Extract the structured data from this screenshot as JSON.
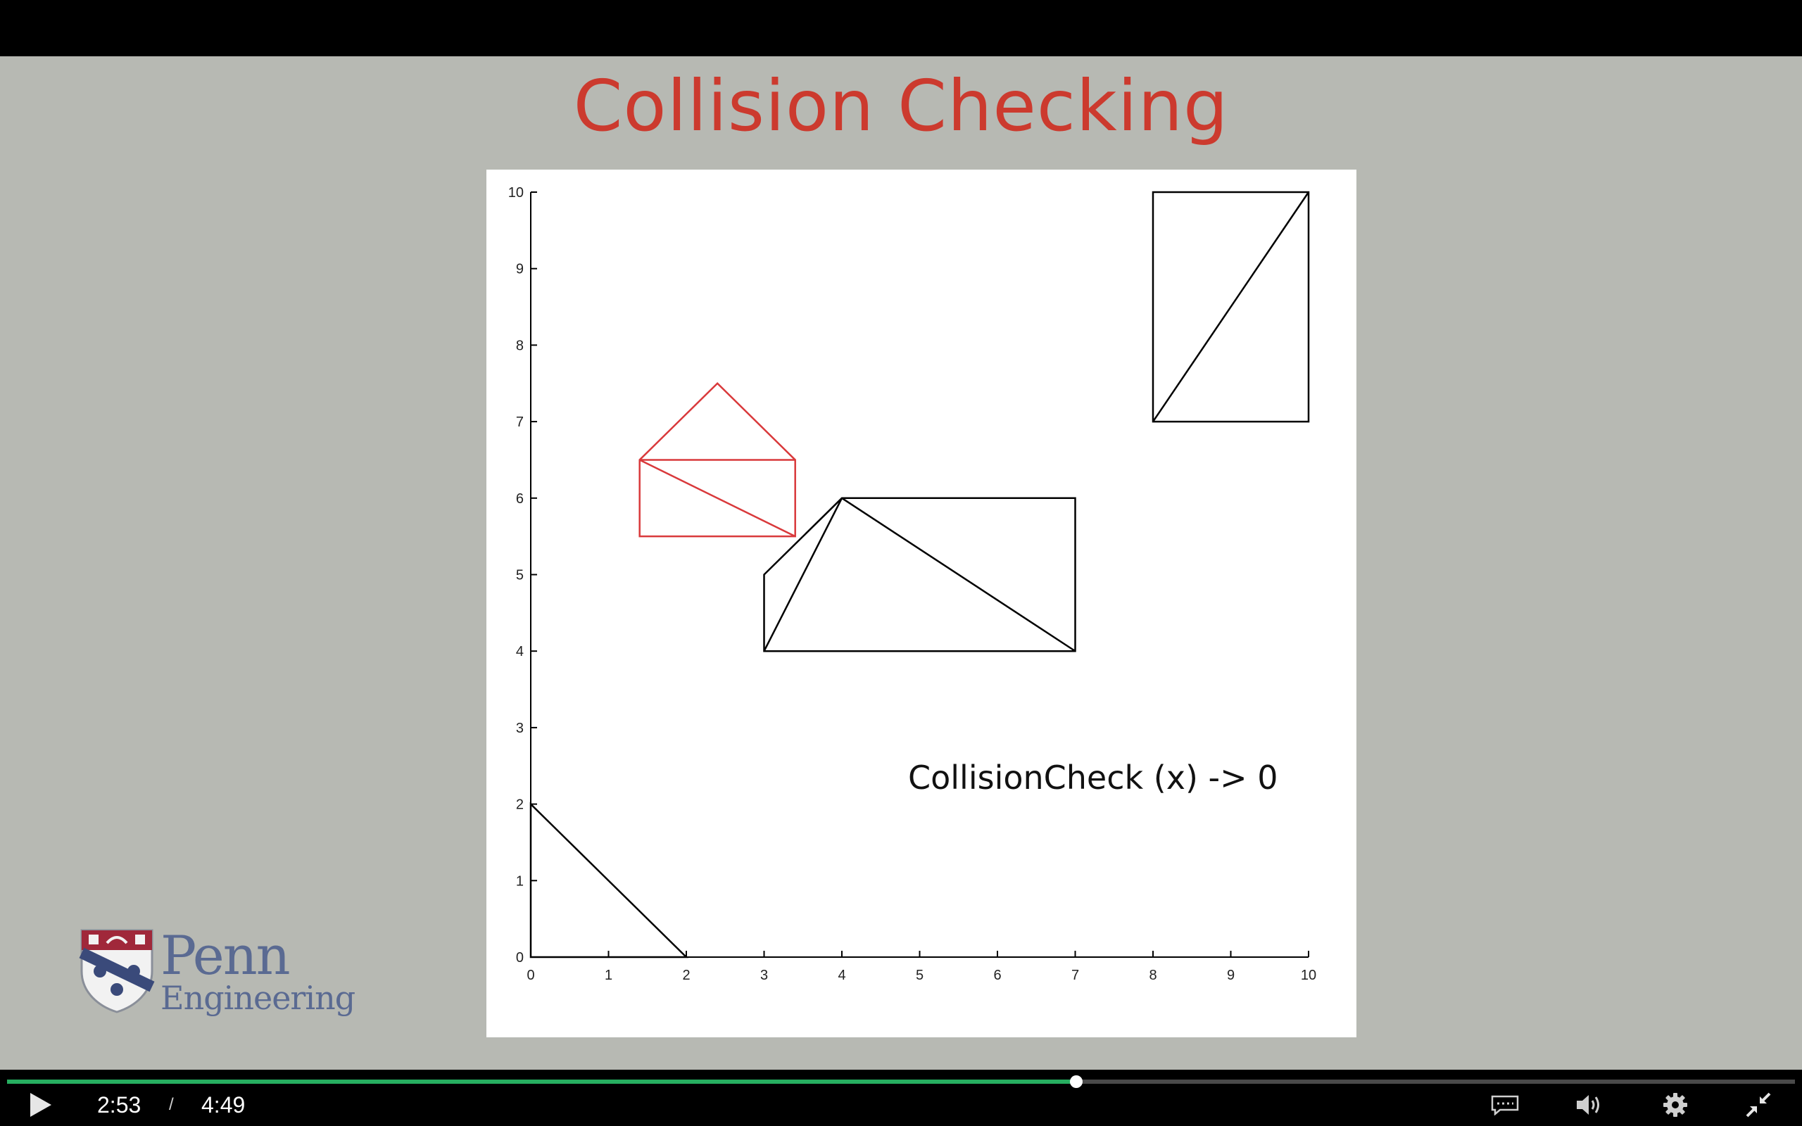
{
  "slide": {
    "title": "Collision Checking",
    "annotation": "CollisionCheck (x) -> 0",
    "logo": {
      "line1": "Penn",
      "line2": "Engineering"
    }
  },
  "chart_data": {
    "type": "line",
    "xlim": [
      0,
      10
    ],
    "ylim": [
      0,
      10
    ],
    "xticks": [
      0,
      1,
      2,
      3,
      4,
      5,
      6,
      7,
      8,
      9,
      10
    ],
    "yticks": [
      0,
      1,
      2,
      3,
      4,
      5,
      6,
      7,
      8,
      9,
      10
    ],
    "grid": false,
    "shapes": [
      {
        "name": "triangle-bottom-left",
        "color": "#000000",
        "closed": true,
        "points": [
          [
            0,
            0
          ],
          [
            2,
            0
          ],
          [
            0,
            2
          ]
        ]
      },
      {
        "name": "obstacle-middle",
        "color": "#000000",
        "closed": true,
        "points": [
          [
            3,
            4
          ],
          [
            7,
            4
          ],
          [
            7,
            6
          ],
          [
            4,
            6
          ],
          [
            3,
            5
          ]
        ],
        "diagonals": [
          [
            [
              3,
              4
            ],
            [
              4,
              6
            ]
          ],
          [
            [
              4,
              6
            ],
            [
              7,
              4
            ]
          ]
        ]
      },
      {
        "name": "obstacle-top-right",
        "color": "#000000",
        "closed": true,
        "points": [
          [
            8,
            7
          ],
          [
            10,
            7
          ],
          [
            10,
            10
          ],
          [
            8,
            10
          ]
        ],
        "diagonals": [
          [
            [
              8,
              7
            ],
            [
              10,
              10
            ]
          ]
        ]
      },
      {
        "name": "robot-house",
        "color": "#d9393b",
        "closed": true,
        "points": [
          [
            1.4,
            5.5
          ],
          [
            3.4,
            5.5
          ],
          [
            3.4,
            6.5
          ],
          [
            2.4,
            7.5
          ],
          [
            1.4,
            6.5
          ]
        ],
        "diagonals": [
          [
            [
              1.4,
              6.5
            ],
            [
              3.4,
              6.5
            ]
          ],
          [
            [
              1.4,
              6.5
            ],
            [
              3.4,
              5.5
            ]
          ]
        ]
      }
    ]
  },
  "player": {
    "current_time": "2:53",
    "separator": "/",
    "duration": "4:49",
    "progress_fraction": 0.598,
    "accent_color": "#27ae60",
    "icons": {
      "play": "play-icon",
      "captions": "captions-icon",
      "volume": "volume-icon",
      "settings": "gear-icon",
      "exit_fullscreen": "exit-fullscreen-icon"
    }
  }
}
